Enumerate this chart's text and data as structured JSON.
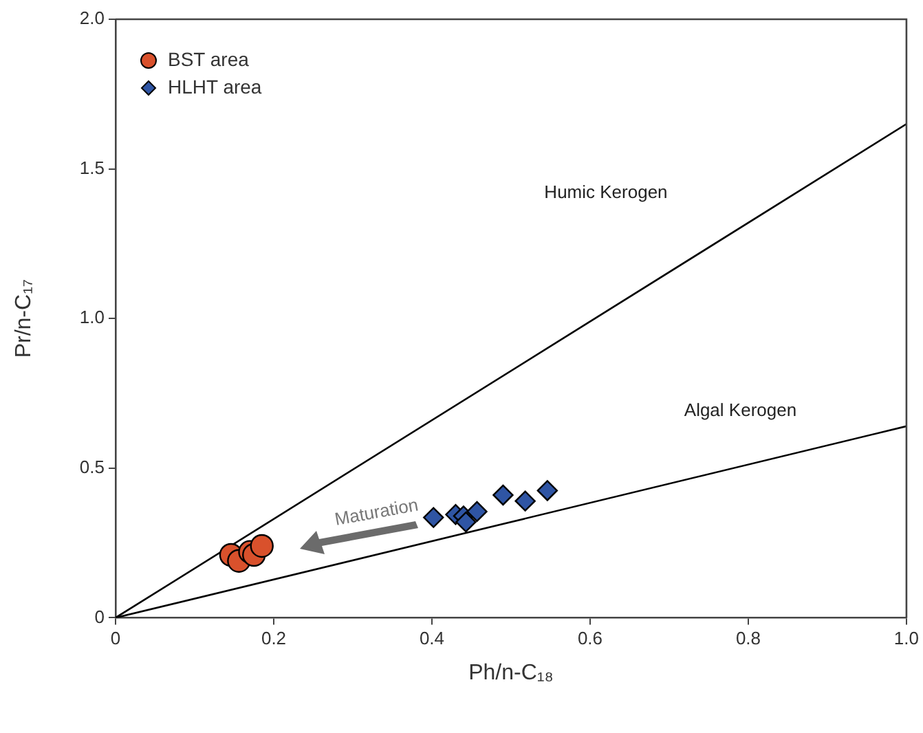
{
  "chart_data": {
    "type": "scatter",
    "xlabel": "Ph/n-C₁₈",
    "ylabel": "Pr/n-C₁₇",
    "xlim": [
      0,
      1
    ],
    "ylim": [
      0,
      2
    ],
    "xticks": [
      0,
      0.2,
      0.4,
      0.6,
      0.8,
      {
        "value": 1,
        "label": "1.0"
      }
    ],
    "yticks": [
      0,
      0.5,
      {
        "value": 1,
        "label": "1.0"
      },
      1.5,
      {
        "value": 2,
        "label": "2.0"
      }
    ],
    "grid": false,
    "legend": "top left",
    "series": [
      {
        "name": "BST area",
        "color": "#d9512c",
        "marker": "circle",
        "x": [
          0.146,
          0.156,
          0.17,
          0.175,
          0.185
        ],
        "values": [
          0.21,
          0.19,
          0.22,
          0.21,
          0.24
        ]
      },
      {
        "name": "HLHT area",
        "color": "#2f55a4",
        "marker": "diamond",
        "x": [
          0.402,
          0.43,
          0.44,
          0.443,
          0.457,
          0.49,
          0.518,
          0.546
        ],
        "values": [
          0.335,
          0.345,
          0.34,
          0.32,
          0.355,
          0.41,
          0.39,
          0.425
        ]
      },
      {
        "type": "line",
        "color": "#000000",
        "marker": "none",
        "x": [
          0,
          1
        ],
        "values": [
          0,
          1.65
        ]
      },
      {
        "type": "line",
        "color": "#000000",
        "marker": "none",
        "x": [
          0,
          1
        ],
        "values": [
          0,
          0.64
        ]
      }
    ],
    "annotations": [
      "Humic Kerogen",
      "Algal Kerogen",
      "Maturation"
    ]
  }
}
